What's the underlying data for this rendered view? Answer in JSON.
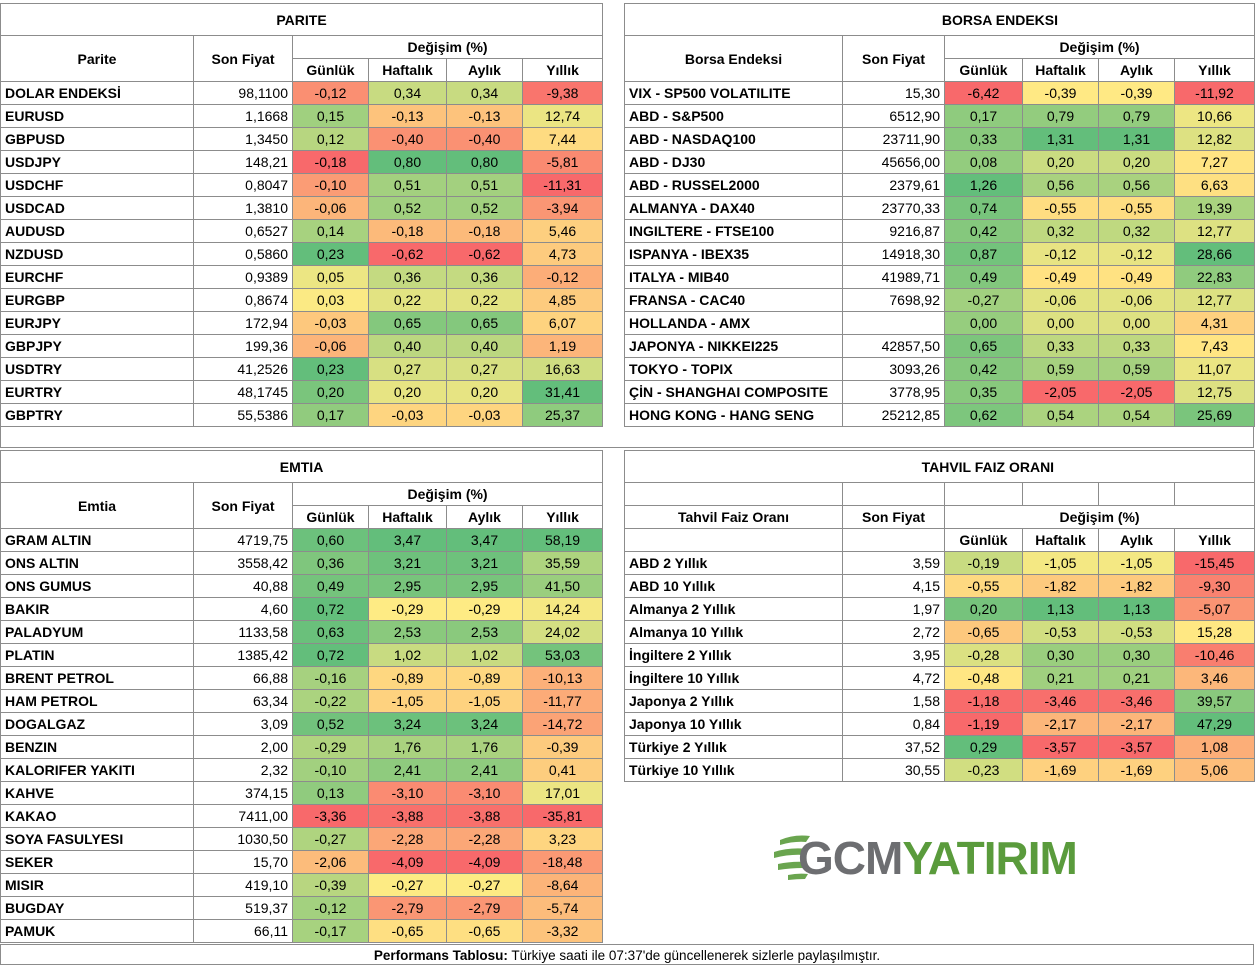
{
  "parite": {
    "title": "PARITE",
    "col_name": "Parite",
    "col_price": "Son Fiyat",
    "col_change": "Değişim (%)",
    "periods": [
      "Günlük",
      "Haftalık",
      "Aylık",
      "Yıllık"
    ],
    "rows": [
      {
        "name": "DOLAR ENDEKSİ",
        "price": "98,1100",
        "d": "-0,12",
        "w": "0,34",
        "m": "0,34",
        "y": "-9,38"
      },
      {
        "name": "EURUSD",
        "price": "1,1668",
        "d": "0,15",
        "w": "-0,13",
        "m": "-0,13",
        "y": "12,74"
      },
      {
        "name": "GBPUSD",
        "price": "1,3450",
        "d": "0,12",
        "w": "-0,40",
        "m": "-0,40",
        "y": "7,44"
      },
      {
        "name": "USDJPY",
        "price": "148,21",
        "d": "-0,18",
        "w": "0,80",
        "m": "0,80",
        "y": "-5,81"
      },
      {
        "name": "USDCHF",
        "price": "0,8047",
        "d": "-0,10",
        "w": "0,51",
        "m": "0,51",
        "y": "-11,31"
      },
      {
        "name": "USDCAD",
        "price": "1,3810",
        "d": "-0,06",
        "w": "0,52",
        "m": "0,52",
        "y": "-3,94"
      },
      {
        "name": "AUDUSD",
        "price": "0,6527",
        "d": "0,14",
        "w": "-0,18",
        "m": "-0,18",
        "y": "5,46"
      },
      {
        "name": "NZDUSD",
        "price": "0,5860",
        "d": "0,23",
        "w": "-0,62",
        "m": "-0,62",
        "y": "4,73"
      },
      {
        "name": "EURCHF",
        "price": "0,9389",
        "d": "0,05",
        "w": "0,36",
        "m": "0,36",
        "y": "-0,12"
      },
      {
        "name": "EURGBP",
        "price": "0,8674",
        "d": "0,03",
        "w": "0,22",
        "m": "0,22",
        "y": "4,85"
      },
      {
        "name": "EURJPY",
        "price": "172,94",
        "d": "-0,03",
        "w": "0,65",
        "m": "0,65",
        "y": "6,07"
      },
      {
        "name": "GBPJPY",
        "price": "199,36",
        "d": "-0,06",
        "w": "0,40",
        "m": "0,40",
        "y": "1,19"
      },
      {
        "name": "USDTRY",
        "price": "41,2526",
        "d": "0,23",
        "w": "0,27",
        "m": "0,27",
        "y": "16,63"
      },
      {
        "name": "EURTRY",
        "price": "48,1745",
        "d": "0,20",
        "w": "0,20",
        "m": "0,20",
        "y": "31,41"
      },
      {
        "name": "GBPTRY",
        "price": "55,5386",
        "d": "0,17",
        "w": "-0,03",
        "m": "-0,03",
        "y": "25,37"
      }
    ]
  },
  "borsa": {
    "title": "BORSA ENDEKSI",
    "col_name": "Borsa Endeksi",
    "col_price": "Son Fiyat",
    "col_change": "Değişim (%)",
    "periods": [
      "Günlük",
      "Haftalık",
      "Aylık",
      "Yıllık"
    ],
    "rows": [
      {
        "name": "VIX  - SP500 VOLATILITE",
        "price": "15,30",
        "d": "-6,42",
        "w": "-0,39",
        "m": "-0,39",
        "y": "-11,92"
      },
      {
        "name": "ABD - S&P500",
        "price": "6512,90",
        "d": "0,17",
        "w": "0,79",
        "m": "0,79",
        "y": "10,66"
      },
      {
        "name": "ABD - NASDAQ100",
        "price": "23711,90",
        "d": "0,33",
        "w": "1,31",
        "m": "1,31",
        "y": "12,82"
      },
      {
        "name": "ABD - DJ30",
        "price": "45656,00",
        "d": "0,08",
        "w": "0,20",
        "m": "0,20",
        "y": "7,27"
      },
      {
        "name": "ABD - RUSSEL2000",
        "price": "2379,61",
        "d": "1,26",
        "w": "0,56",
        "m": "0,56",
        "y": "6,63"
      },
      {
        "name": "ALMANYA - DAX40",
        "price": "23770,33",
        "d": "0,74",
        "w": "-0,55",
        "m": "-0,55",
        "y": "19,39"
      },
      {
        "name": "INGILTERE - FTSE100",
        "price": "9216,87",
        "d": "0,42",
        "w": "0,32",
        "m": "0,32",
        "y": "12,77"
      },
      {
        "name": "ISPANYA - IBEX35",
        "price": "14918,30",
        "d": "0,87",
        "w": "-0,12",
        "m": "-0,12",
        "y": "28,66"
      },
      {
        "name": "ITALYA - MIB40",
        "price": "41989,71",
        "d": "0,49",
        "w": "-0,49",
        "m": "-0,49",
        "y": "22,83"
      },
      {
        "name": "FRANSA - CAC40",
        "price": "7698,92",
        "d": "-0,27",
        "w": "-0,06",
        "m": "-0,06",
        "y": "12,77"
      },
      {
        "name": "HOLLANDA - AMX",
        "price": "",
        "d": "0,00",
        "w": "0,00",
        "m": "0,00",
        "y": "4,31"
      },
      {
        "name": "JAPONYA - NIKKEI225",
        "price": "42857,50",
        "d": "0,65",
        "w": "0,33",
        "m": "0,33",
        "y": "7,43"
      },
      {
        "name": "TOKYO - TOPIX",
        "price": "3093,26",
        "d": "0,42",
        "w": "0,59",
        "m": "0,59",
        "y": "11,07"
      },
      {
        "name": "ÇİN - SHANGHAI COMPOSITE",
        "price": "3778,95",
        "d": "0,35",
        "w": "-2,05",
        "m": "-2,05",
        "y": "12,75"
      },
      {
        "name": "HONG KONG - HANG SENG",
        "price": "25212,85",
        "d": "0,62",
        "w": "0,54",
        "m": "0,54",
        "y": "25,69"
      }
    ]
  },
  "emtia": {
    "title": "EMTIA",
    "col_name": "Emtia",
    "col_price": "Son Fiyat",
    "col_change": "Değişim (%)",
    "periods": [
      "Günlük",
      "Haftalık",
      "Aylık",
      "Yıllık"
    ],
    "rows": [
      {
        "name": "GRAM ALTIN",
        "price": "4719,75",
        "d": "0,60",
        "w": "3,47",
        "m": "3,47",
        "y": "58,19"
      },
      {
        "name": "ONS ALTIN",
        "price": "3558,42",
        "d": "0,36",
        "w": "3,21",
        "m": "3,21",
        "y": "35,59"
      },
      {
        "name": "ONS GUMUS",
        "price": "40,88",
        "d": "0,49",
        "w": "2,95",
        "m": "2,95",
        "y": "41,50"
      },
      {
        "name": "BAKIR",
        "price": "4,60",
        "d": "0,72",
        "w": "-0,29",
        "m": "-0,29",
        "y": "14,24"
      },
      {
        "name": "PALADYUM",
        "price": "1133,58",
        "d": "0,63",
        "w": "2,53",
        "m": "2,53",
        "y": "24,02"
      },
      {
        "name": "PLATIN",
        "price": "1385,42",
        "d": "0,72",
        "w": "1,02",
        "m": "1,02",
        "y": "53,03"
      },
      {
        "name": "BRENT PETROL",
        "price": "66,88",
        "d": "-0,16",
        "w": "-0,89",
        "m": "-0,89",
        "y": "-10,13"
      },
      {
        "name": "HAM PETROL",
        "price": "63,34",
        "d": "-0,22",
        "w": "-1,05",
        "m": "-1,05",
        "y": "-11,77"
      },
      {
        "name": "DOGALGAZ",
        "price": "3,09",
        "d": "0,52",
        "w": "3,24",
        "m": "3,24",
        "y": "-14,72"
      },
      {
        "name": "BENZIN",
        "price": "2,00",
        "d": "-0,29",
        "w": "1,76",
        "m": "1,76",
        "y": "-0,39"
      },
      {
        "name": "KALORIFER YAKITI",
        "price": "2,32",
        "d": "-0,10",
        "w": "2,41",
        "m": "2,41",
        "y": "0,41"
      },
      {
        "name": "KAHVE",
        "price": "374,15",
        "d": "0,13",
        "w": "-3,10",
        "m": "-3,10",
        "y": "17,01"
      },
      {
        "name": "KAKAO",
        "price": "7411,00",
        "d": "-3,36",
        "w": "-3,88",
        "m": "-3,88",
        "y": "-35,81"
      },
      {
        "name": "SOYA FASULYESI",
        "price": "1030,50",
        "d": "-0,27",
        "w": "-2,28",
        "m": "-2,28",
        "y": "3,23"
      },
      {
        "name": "SEKER",
        "price": "15,70",
        "d": "-2,06",
        "w": "-4,09",
        "m": "-4,09",
        "y": "-18,48"
      },
      {
        "name": "MISIR",
        "price": "419,10",
        "d": "-0,39",
        "w": "-0,27",
        "m": "-0,27",
        "y": "-8,64"
      },
      {
        "name": "BUGDAY",
        "price": "519,37",
        "d": "-0,12",
        "w": "-2,79",
        "m": "-2,79",
        "y": "-5,74"
      },
      {
        "name": "PAMUK",
        "price": "66,11",
        "d": "-0,17",
        "w": "-0,65",
        "m": "-0,65",
        "y": "-3,32"
      }
    ]
  },
  "tahvil": {
    "title": "TAHVIL FAIZ ORANI",
    "col_name": "Tahvil Faiz Oranı",
    "col_price": "Son Fiyat",
    "col_change": "Değişim (%)",
    "periods": [
      "Günlük",
      "Haftalık",
      "Aylık",
      "Yıllık"
    ],
    "rows": [
      {
        "name": "ABD 2 Yıllık",
        "price": "3,59",
        "d": "-0,19",
        "w": "-1,05",
        "m": "-1,05",
        "y": "-15,45"
      },
      {
        "name": "ABD 10 Yıllık",
        "price": "4,15",
        "d": "-0,55",
        "w": "-1,82",
        "m": "-1,82",
        "y": "-9,30"
      },
      {
        "name": "Almanya 2 Yıllık",
        "price": "1,97",
        "d": "0,20",
        "w": "1,13",
        "m": "1,13",
        "y": "-5,07"
      },
      {
        "name": "Almanya 10 Yıllık",
        "price": "2,72",
        "d": "-0,65",
        "w": "-0,53",
        "m": "-0,53",
        "y": "15,28"
      },
      {
        "name": "İngiltere 2 Yıllık",
        "price": "3,95",
        "d": "-0,28",
        "w": "0,30",
        "m": "0,30",
        "y": "-10,46"
      },
      {
        "name": "İngiltere 10 Yıllık",
        "price": "4,72",
        "d": "-0,48",
        "w": "0,21",
        "m": "0,21",
        "y": "3,46"
      },
      {
        "name": "Japonya 2 Yıllık",
        "price": "1,58",
        "d": "-1,18",
        "w": "-3,46",
        "m": "-3,46",
        "y": "39,57"
      },
      {
        "name": "Japonya 10 Yıllık",
        "price": "0,84",
        "d": "-1,19",
        "w": "-2,17",
        "m": "-2,17",
        "y": "47,29"
      },
      {
        "name": "Türkiye 2 Yıllık",
        "price": "37,52",
        "d": "0,29",
        "w": "-3,57",
        "m": "-3,57",
        "y": "1,08"
      },
      {
        "name": "Türkiye 10 Yıllık",
        "price": "30,55",
        "d": "-0,23",
        "w": "-1,69",
        "m": "-1,69",
        "y": "5,06"
      }
    ]
  },
  "logo": {
    "part1": "GCM",
    "part2": "YATIRIM"
  },
  "footer": {
    "bold": "Performans Tablosu:",
    "text": " Türkiye saati ile 07:37'de güncellenerek sizlerle paylaşılmıştır."
  },
  "colors": {
    "red": "#f8696b",
    "yellow": "#ffeb84",
    "green": "#63be7b",
    "logo_green": "#5a9b3c",
    "logo_gray": "#6d6e71"
  }
}
